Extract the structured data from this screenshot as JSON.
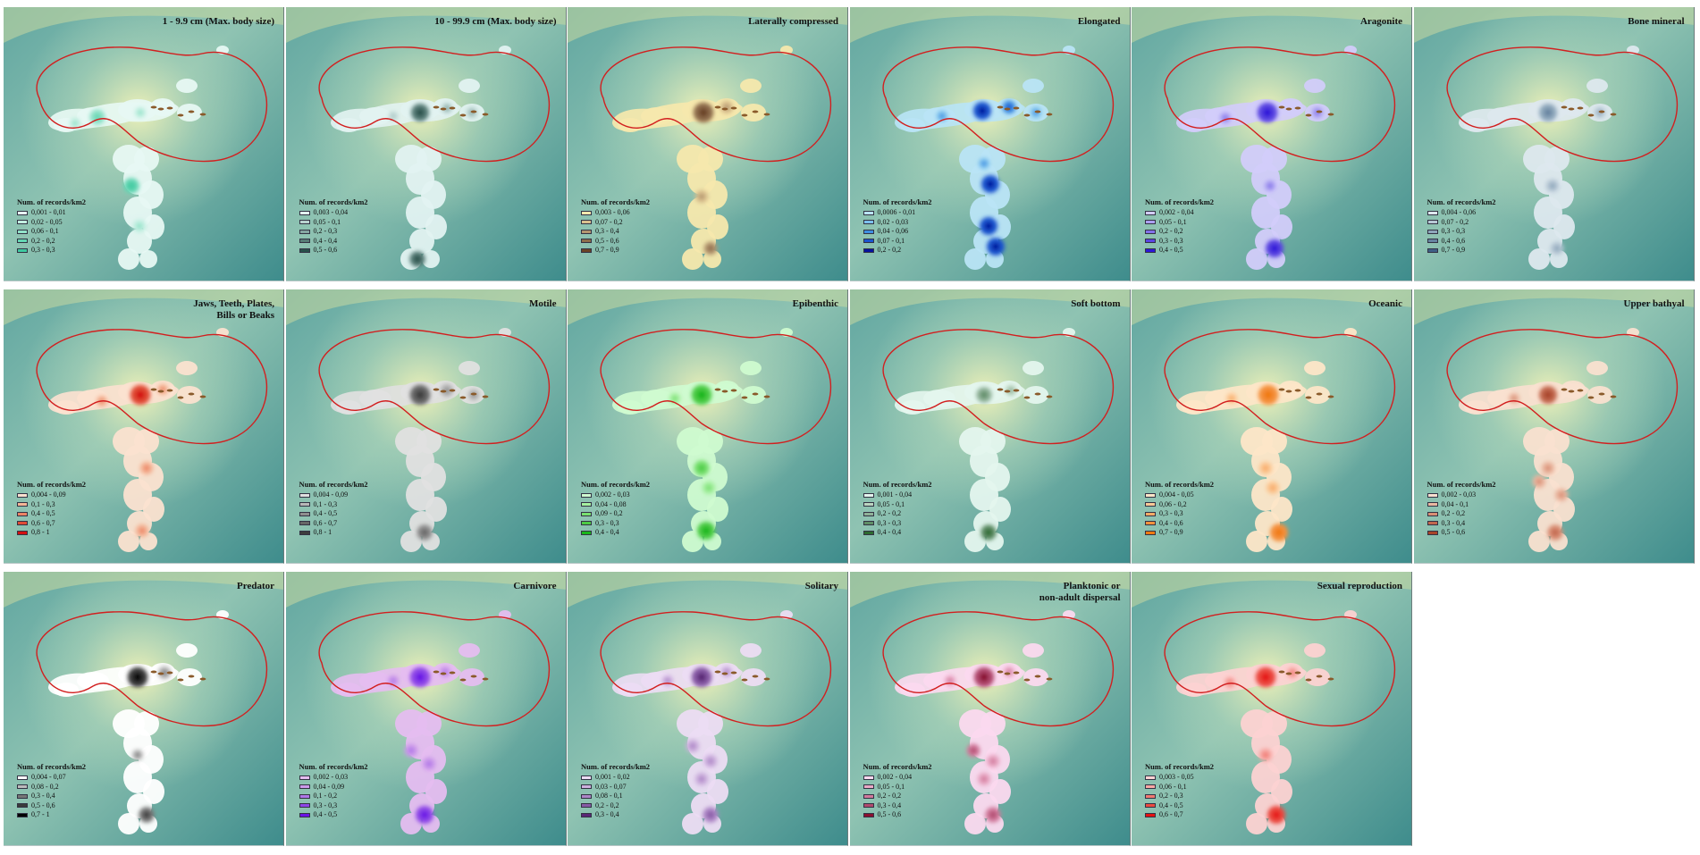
{
  "map": {
    "legend_title": "Num. of records/km2",
    "colors": {
      "boundary": "#d21f1f",
      "sea_light": "#f4f3b8",
      "sea_mid": "#a9d2b7",
      "sea_deep": "#4f9a97"
    },
    "panels": [
      {
        "title": [
          "1 - 9.9 cm (Max. body size)"
        ],
        "hue": "#3fc9a0",
        "legend": [
          "0,001 - 0,01",
          "0,02 - 0,05",
          "0,06 - 0,1",
          "0,2 - 0,2",
          "0,3 - 0,3"
        ],
        "swatches": [
          "#e7f8f3",
          "#c2efe1",
          "#92e2c9",
          "#64d6b3",
          "#3fc9a0"
        ]
      },
      {
        "title": [
          "10 - 99.9 cm (Max. body size)"
        ],
        "hue": "#27504a",
        "legend": [
          "0,003 - 0,04",
          "0,05 - 0,1",
          "0,2 - 0,3",
          "0,4 - 0,4",
          "0,5 - 0,6"
        ],
        "swatches": [
          "#e2f2f1",
          "#b8d2cf",
          "#86a6a2",
          "#577b76",
          "#27504a"
        ]
      },
      {
        "title": [
          "Laterally compressed"
        ],
        "hue": "#6b4226",
        "legend": [
          "0,003 - 0,06",
          "0,07 - 0,2",
          "0,3 - 0,4",
          "0,5 - 0,6",
          "0,7 - 0,9"
        ],
        "swatches": [
          "#f6e8ad",
          "#d9c08e",
          "#b39670",
          "#8d6c4b",
          "#6b4226"
        ]
      },
      {
        "title": [
          "Elongated"
        ],
        "hue": "#06129e",
        "legend": [
          "0,0006 - 0,01",
          "0,02 - 0,03",
          "0,04 - 0,06",
          "0,07 - 0,1",
          "0,2 - 0,2"
        ],
        "swatches": [
          "#b9e4f5",
          "#7cc1ee",
          "#3f8fe2",
          "#1c54cf",
          "#06129e"
        ]
      },
      {
        "title": [
          "Aragonite"
        ],
        "hue": "#2d17d8",
        "legend": [
          "0,002 - 0,04",
          "0,05 - 0,1",
          "0,2 - 0,2",
          "0,3 - 0,3",
          "0,4 - 0,5"
        ],
        "swatches": [
          "#d2ccfa",
          "#aba0f2",
          "#8372ea",
          "#5a45e1",
          "#2d17d8"
        ]
      },
      {
        "title": [
          "Bone mineral"
        ],
        "hue": "#3f5f86",
        "legend": [
          "0,004 - 0,06",
          "0,07 - 0,2",
          "0,3 - 0,3",
          "0,4 - 0,6",
          "0,7 - 0,9"
        ],
        "swatches": [
          "#dde8ee",
          "#b7c8d5",
          "#8ea7bb",
          "#6683a0",
          "#3f5f86"
        ]
      },
      {
        "title": [
          "Jaws, Teeth, Plates,",
          "Bills or Beaks"
        ],
        "hue": "#d31010",
        "legend": [
          "0,004 - 0,09",
          "0,1 - 0,3",
          "0,4 - 0,5",
          "0,6 - 0,7",
          "0,8 - 1"
        ],
        "swatches": [
          "#fbe1d0",
          "#f4b596",
          "#ec8464",
          "#e04b36",
          "#d31010"
        ]
      },
      {
        "title": [
          "Motile"
        ],
        "hue": "#3d3d3d",
        "legend": [
          "0,004 - 0,09",
          "0,1 - 0,3",
          "0,4 - 0,5",
          "0,6 - 0,7",
          "0,8 - 1"
        ],
        "swatches": [
          "#e0e0e0",
          "#b7b7b7",
          "#8e8e8e",
          "#666666",
          "#3d3d3d"
        ]
      },
      {
        "title": [
          "Epibenthic"
        ],
        "hue": "#19b61a",
        "legend": [
          "0,002 - 0,03",
          "0,04 - 0,08",
          "0,09 - 0,2",
          "0,3 - 0,3",
          "0,4 - 0,4"
        ],
        "swatches": [
          "#cffbd0",
          "#a4ef9f",
          "#78e06f",
          "#4ccb44",
          "#19b61a"
        ]
      },
      {
        "title": [
          "Soft bottom"
        ],
        "hue": "#2c6a2f",
        "legend": [
          "0,001 - 0,04",
          "0,05 - 0,1",
          "0,2 - 0,2",
          "0,3 - 0,3",
          "0,4 - 0,4"
        ],
        "swatches": [
          "#e4f5ee",
          "#bad4c0",
          "#8fb198",
          "#5f8d66",
          "#2c6a2f"
        ]
      },
      {
        "title": [
          "Oceanic"
        ],
        "hue": "#f07a10",
        "legend": [
          "0,004 - 0,05",
          "0,06 - 0,2",
          "0,3 - 0,3",
          "0,4 - 0,6",
          "0,7 - 0,9"
        ],
        "swatches": [
          "#fde6c8",
          "#fbc996",
          "#f8ab66",
          "#f4913c",
          "#f07a10"
        ]
      },
      {
        "title": [
          "Upper bathyal"
        ],
        "hue": "#a8442a",
        "legend": [
          "0,002 - 0,03",
          "0,04 - 0,1",
          "0,2 - 0,2",
          "0,3 - 0,4",
          "0,5 - 0,6"
        ],
        "swatches": [
          "#f9e0d0",
          "#eab7a0",
          "#d98e74",
          "#c2674d",
          "#a8442a"
        ]
      },
      {
        "title": [
          "Predator"
        ],
        "hue": "#000000",
        "legend": [
          "0,004 - 0,07",
          "0,08 - 0,2",
          "0,3 - 0,4",
          "0,5 - 0,6",
          "0,7 - 1"
        ],
        "swatches": [
          "#ffffff",
          "#bbbbbb",
          "#777777",
          "#3a3a3a",
          "#000000"
        ]
      },
      {
        "title": [
          "Carnivore"
        ],
        "hue": "#6a14e6",
        "legend": [
          "0,002 - 0,03",
          "0,04 - 0,09",
          "0,1 - 0,2",
          "0,3 - 0,3",
          "0,4 - 0,5"
        ],
        "swatches": [
          "#e5bdf0",
          "#cc9aea",
          "#b077e8",
          "#8e46e7",
          "#6a14e6"
        ]
      },
      {
        "title": [
          "Solitary"
        ],
        "hue": "#5a2676",
        "legend": [
          "0,001 - 0,02",
          "0,03 - 0,07",
          "0,08 - 0,1",
          "0,2 - 0,2",
          "0,3 - 0,4"
        ],
        "swatches": [
          "#ecdcf3",
          "#cdb1de",
          "#ad86c6",
          "#875aa5",
          "#5a2676"
        ]
      },
      {
        "title": [
          "Planktonic or",
          "non-adult dispersal"
        ],
        "hue": "#8a1030",
        "legend": [
          "0,002 - 0,04",
          "0,05 - 0,1",
          "0,2 - 0,2",
          "0,3 - 0,4",
          "0,5 - 0,6"
        ],
        "swatches": [
          "#fbd9ef",
          "#e9a9c5",
          "#d17a9c",
          "#b04a6e",
          "#8a1030"
        ]
      },
      {
        "title": [
          "Sexual reproduction"
        ],
        "hue": "#e51212",
        "legend": [
          "0,003 - 0,05",
          "0,06 - 0,1",
          "0,2 - 0,3",
          "0,4 - 0,5",
          "0,6 - 0,7"
        ],
        "swatches": [
          "#fcd2d2",
          "#f7a7a3",
          "#f17a72",
          "#eb4a41",
          "#e51212"
        ]
      }
    ]
  }
}
